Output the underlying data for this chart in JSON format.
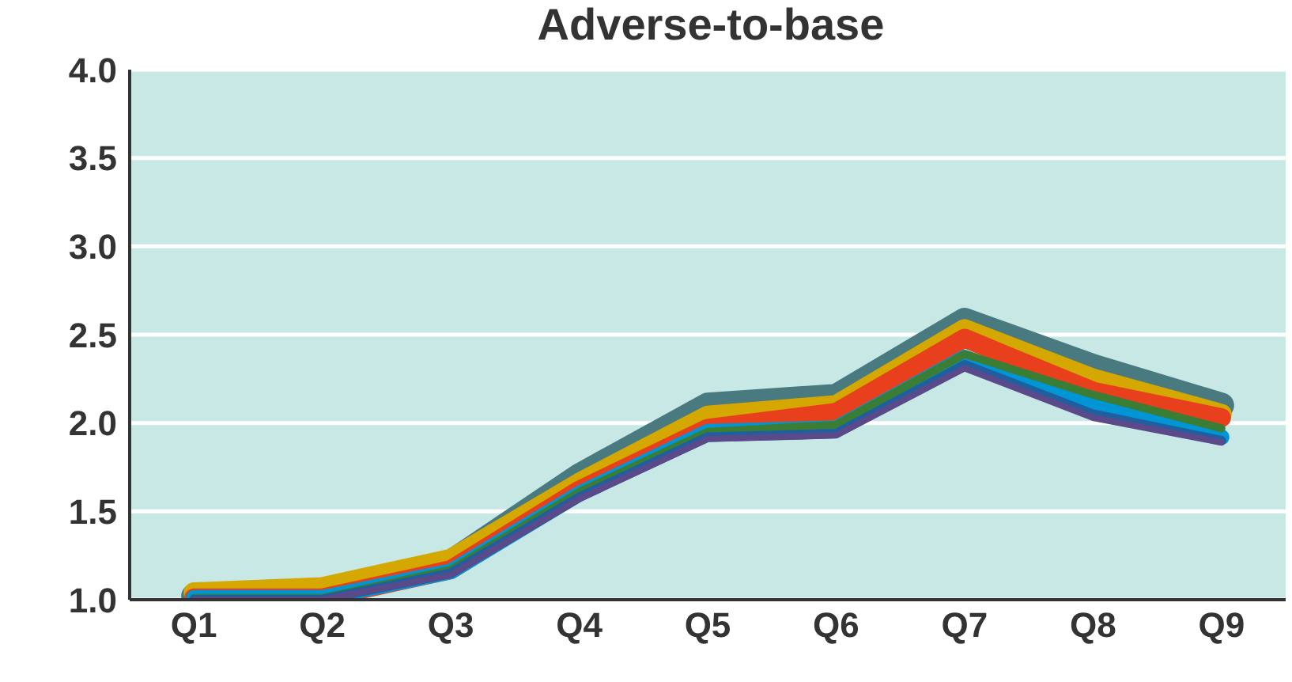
{
  "chart_data": {
    "type": "line",
    "title": "Adverse-to-base",
    "categories": [
      "Q1",
      "Q2",
      "Q3",
      "Q4",
      "Q5",
      "Q6",
      "Q7",
      "Q8",
      "Q9"
    ],
    "series": [
      {
        "color": "#487a80",
        "values": [
          1.02,
          1.05,
          1.21,
          1.7,
          2.1,
          2.15,
          2.58,
          2.32,
          2.1
        ]
      },
      {
        "color": "#d4a800",
        "values": [
          1.04,
          1.07,
          1.23,
          1.66,
          2.04,
          2.1,
          2.53,
          2.25,
          2.05
        ]
      },
      {
        "color": "#e8401c",
        "values": [
          1.01,
          1.01,
          1.17,
          1.62,
          1.97,
          2.06,
          2.48,
          2.18,
          2.03
        ]
      },
      {
        "color": "#0096d6",
        "values": [
          1.01,
          1.01,
          1.16,
          1.6,
          1.95,
          1.97,
          2.37,
          2.1,
          1.92
        ]
      },
      {
        "color": "#3a7d35",
        "values": [
          1.01,
          1.01,
          1.17,
          1.61,
          1.95,
          1.99,
          2.39,
          2.16,
          1.97
        ]
      },
      {
        "color": "#1f5fa0",
        "values": [
          1.0,
          1.0,
          1.15,
          1.58,
          1.92,
          1.94,
          2.33,
          2.05,
          1.9
        ]
      },
      {
        "color": "#5a4a8a",
        "values": [
          1.0,
          1.0,
          1.14,
          1.57,
          1.91,
          1.93,
          2.31,
          2.03,
          1.89
        ]
      }
    ],
    "ylim": [
      1.0,
      4.0
    ],
    "yticks": [
      {
        "value": 1,
        "label": "1.0"
      },
      {
        "value": 1.5,
        "label": "1.5"
      },
      {
        "value": 2,
        "label": "2.0"
      },
      {
        "value": 2.5,
        "label": "2.5"
      },
      {
        "value": 3,
        "label": "3.0"
      },
      {
        "value": 3.5,
        "label": "3.5"
      },
      {
        "value": 4,
        "label": "4.0"
      }
    ],
    "grid": "y",
    "legend": false,
    "marker": "none",
    "line_style": "solid"
  }
}
